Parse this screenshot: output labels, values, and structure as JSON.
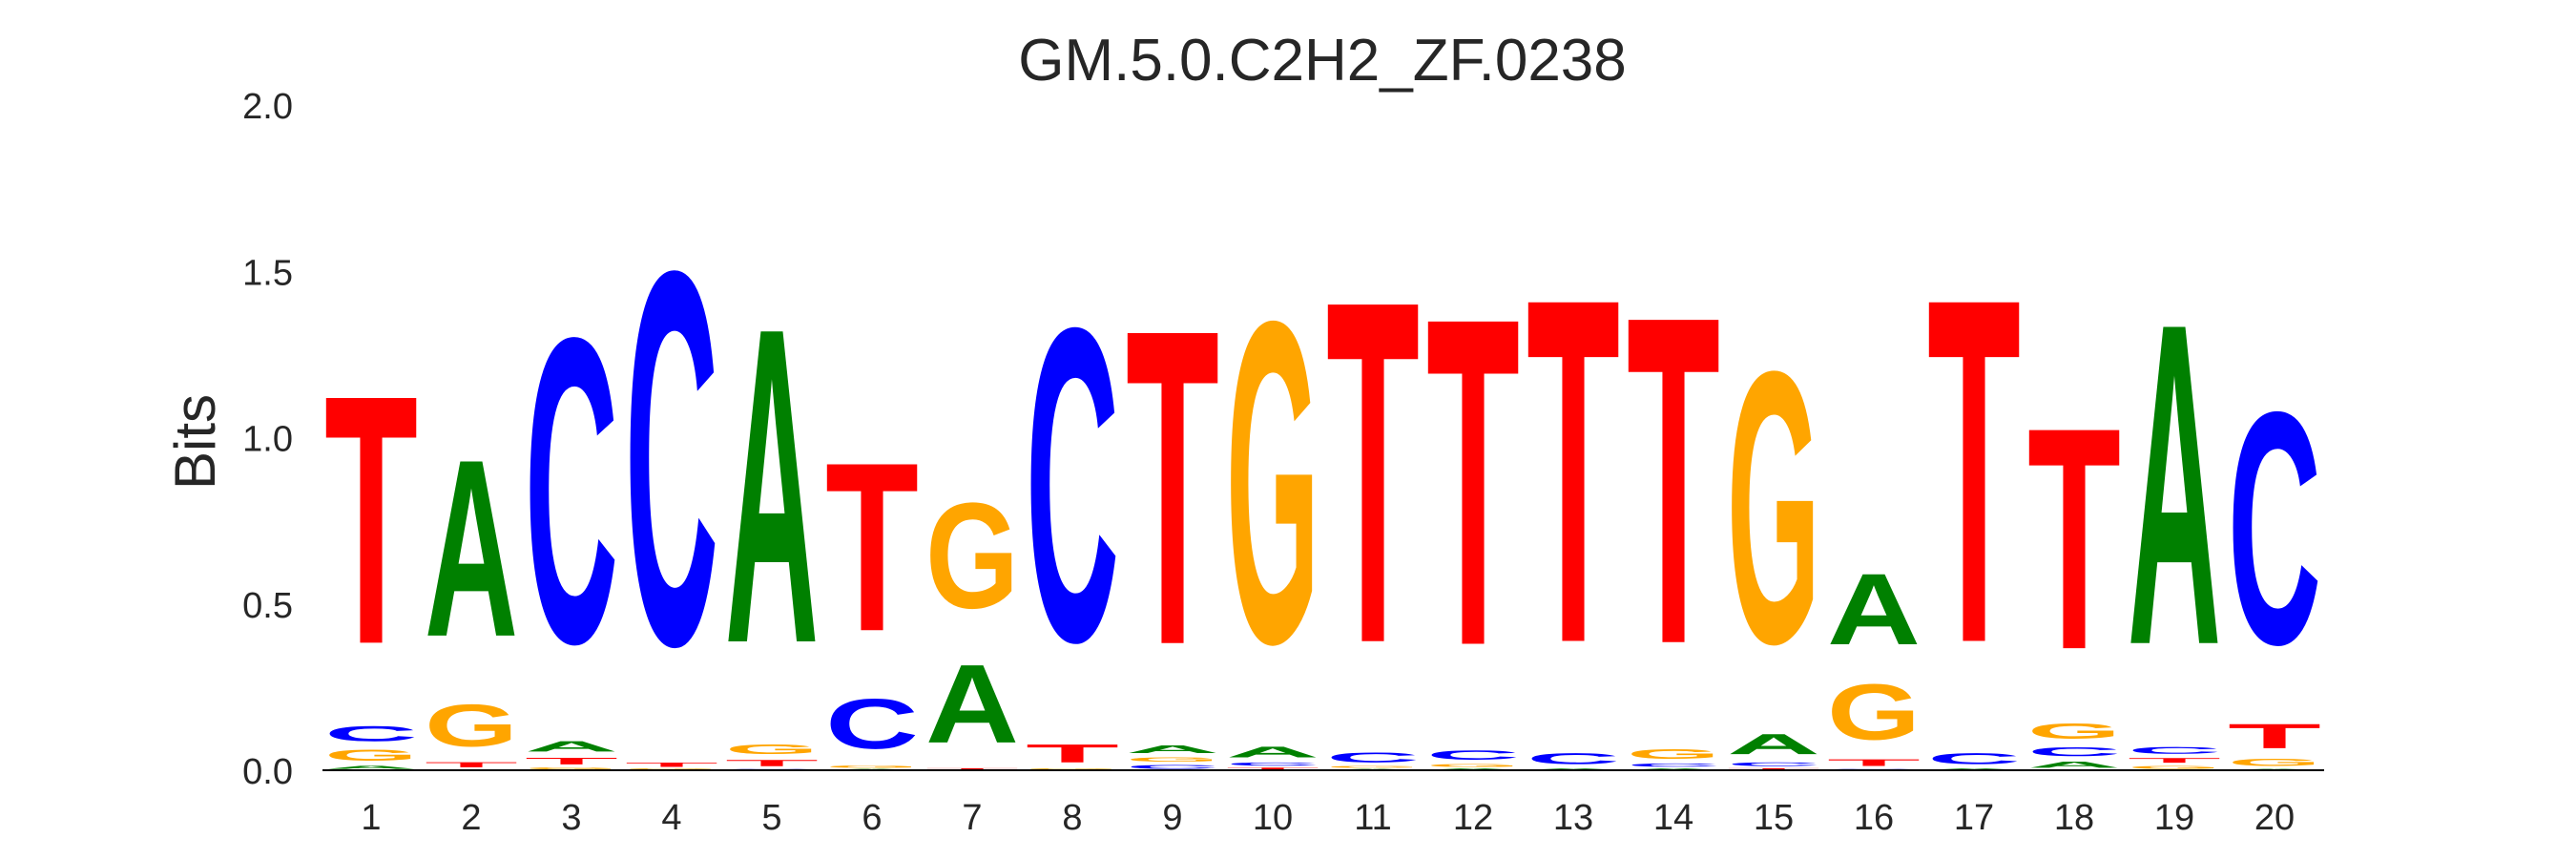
{
  "chart_data": {
    "type": "sequence_logo",
    "title": "GM.5.0.C2H2_ZF.0238",
    "xlabel": "",
    "ylabel": "Bits",
    "ylim": [
      0,
      2.0
    ],
    "yticks": [
      "0.0",
      "0.5",
      "1.0",
      "1.5",
      "2.0"
    ],
    "ytick_values": [
      0,
      0.5,
      1.0,
      1.5,
      2.0
    ],
    "xticks": [
      "1",
      "2",
      "3",
      "4",
      "5",
      "6",
      "7",
      "8",
      "9",
      "10",
      "11",
      "12",
      "13",
      "14",
      "15",
      "16",
      "17",
      "18",
      "19",
      "20"
    ],
    "colors": {
      "A": "#008000",
      "C": "#0000ff",
      "G": "#ffa500",
      "T": "#ff0000"
    },
    "positions": [
      [
        [
          "A",
          0.017
        ],
        [
          "G",
          0.055
        ],
        [
          "C",
          0.075
        ],
        [
          "T",
          1.2
        ]
      ],
      [
        [
          "C",
          0.003
        ],
        [
          "T",
          0.027
        ],
        [
          "G",
          0.206
        ],
        [
          "A",
          0.855
        ]
      ],
      [
        [
          "G",
          0.01
        ],
        [
          "T",
          0.035
        ],
        [
          "A",
          0.053
        ],
        [
          "C",
          1.47
        ]
      ],
      [
        [
          "G",
          0.005
        ],
        [
          "T",
          0.023
        ],
        [
          "C",
          1.8
        ]
      ],
      [
        [
          "C",
          0.005
        ],
        [
          "T",
          0.033
        ],
        [
          "G",
          0.05
        ],
        [
          "A",
          1.52
        ]
      ],
      [
        [
          "A",
          0.005
        ],
        [
          "G",
          0.012
        ],
        [
          "C",
          0.243
        ],
        [
          "T",
          0.815
        ]
      ],
      [
        [
          "T",
          0.008
        ],
        [
          "A",
          0.38
        ],
        [
          "G",
          0.51
        ]
      ],
      [
        [
          "G",
          0.005
        ],
        [
          "T",
          0.09
        ],
        [
          "C",
          1.51
        ]
      ],
      [
        [
          "C",
          0.02
        ],
        [
          "G",
          0.023
        ],
        [
          "A",
          0.04
        ],
        [
          "T",
          1.52
        ]
      ],
      [
        [
          "T",
          0.01
        ],
        [
          "C",
          0.017
        ],
        [
          "A",
          0.055
        ],
        [
          "G",
          1.55
        ]
      ],
      [
        [
          "A",
          0.005
        ],
        [
          "G",
          0.008
        ],
        [
          "C",
          0.05
        ],
        [
          "T",
          1.65
        ]
      ],
      [
        [
          "A",
          0.007
        ],
        [
          "G",
          0.015
        ],
        [
          "C",
          0.047
        ],
        [
          "T",
          1.58
        ]
      ],
      [
        [
          "A",
          0.007
        ],
        [
          "C",
          0.055
        ],
        [
          "T",
          1.66
        ]
      ],
      [
        [
          "A",
          0.007
        ],
        [
          "C",
          0.017
        ],
        [
          "G",
          0.05
        ],
        [
          "T",
          1.58
        ]
      ],
      [
        [
          "T",
          0.008
        ],
        [
          "C",
          0.02
        ],
        [
          "A",
          0.1
        ],
        [
          "G",
          1.31
        ]
      ],
      [
        [
          "C",
          0.005
        ],
        [
          "T",
          0.035
        ],
        [
          "G",
          0.27
        ],
        [
          "A",
          0.345
        ]
      ],
      [
        [
          "A",
          0.007
        ],
        [
          "C",
          0.055
        ],
        [
          "T",
          1.66
        ]
      ],
      [
        [
          "A",
          0.033
        ],
        [
          "C",
          0.045
        ],
        [
          "G",
          0.078
        ],
        [
          "T",
          1.07
        ]
      ],
      [
        [
          "G",
          0.017
        ],
        [
          "T",
          0.025
        ],
        [
          "C",
          0.035
        ],
        [
          "A",
          1.55
        ]
      ],
      [
        [
          "A",
          0.005
        ],
        [
          "G",
          0.037
        ],
        [
          "T",
          0.12
        ],
        [
          "C",
          1.12
        ]
      ]
    ]
  }
}
